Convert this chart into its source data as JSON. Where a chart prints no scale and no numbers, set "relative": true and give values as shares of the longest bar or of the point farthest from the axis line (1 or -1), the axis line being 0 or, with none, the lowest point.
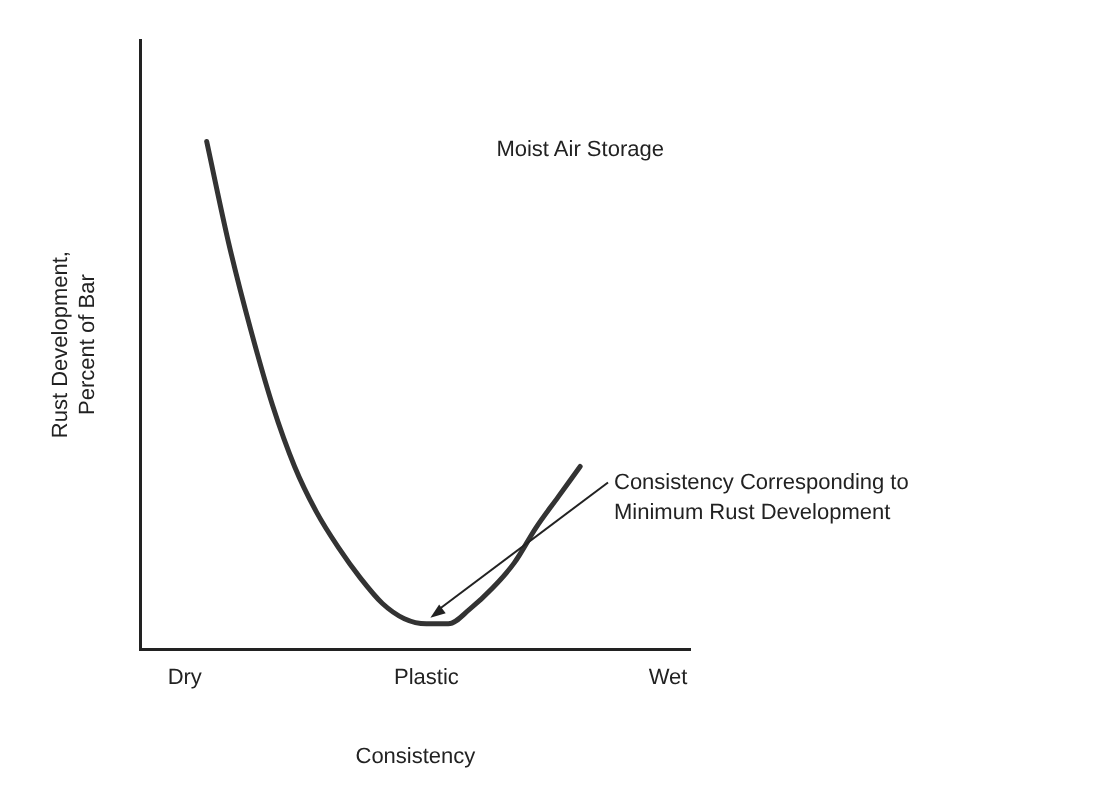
{
  "chart_data": {
    "type": "line",
    "title": "Moist Air Storage",
    "xlabel": "Consistency",
    "ylabel": "Rust Development, Percent of Bar",
    "relative": true,
    "legend": false,
    "grid": false,
    "marker": "none",
    "line_style": "solid",
    "categories": [
      null,
      null,
      "Dry",
      null,
      null,
      null,
      null,
      null,
      null,
      null,
      null,
      null,
      null,
      "Plastic",
      null,
      null,
      null,
      null,
      null,
      null,
      null,
      null,
      null,
      null,
      "Wet",
      null
    ],
    "series": [
      {
        "color": "#333333",
        "values": [
          null,
          null,
          null,
          1,
          0.8,
          0.63,
          0.48,
          0.36,
          0.27,
          0.2,
          0.14,
          0.09,
          0.06,
          0.05,
          0.05,
          0.08,
          0.12,
          0.17,
          0.24,
          0.3,
          0.36,
          null,
          null,
          null,
          null,
          null
        ]
      }
    ],
    "annotations": [
      "Consistency Corresponding to Minimum Rust Development"
    ]
  }
}
